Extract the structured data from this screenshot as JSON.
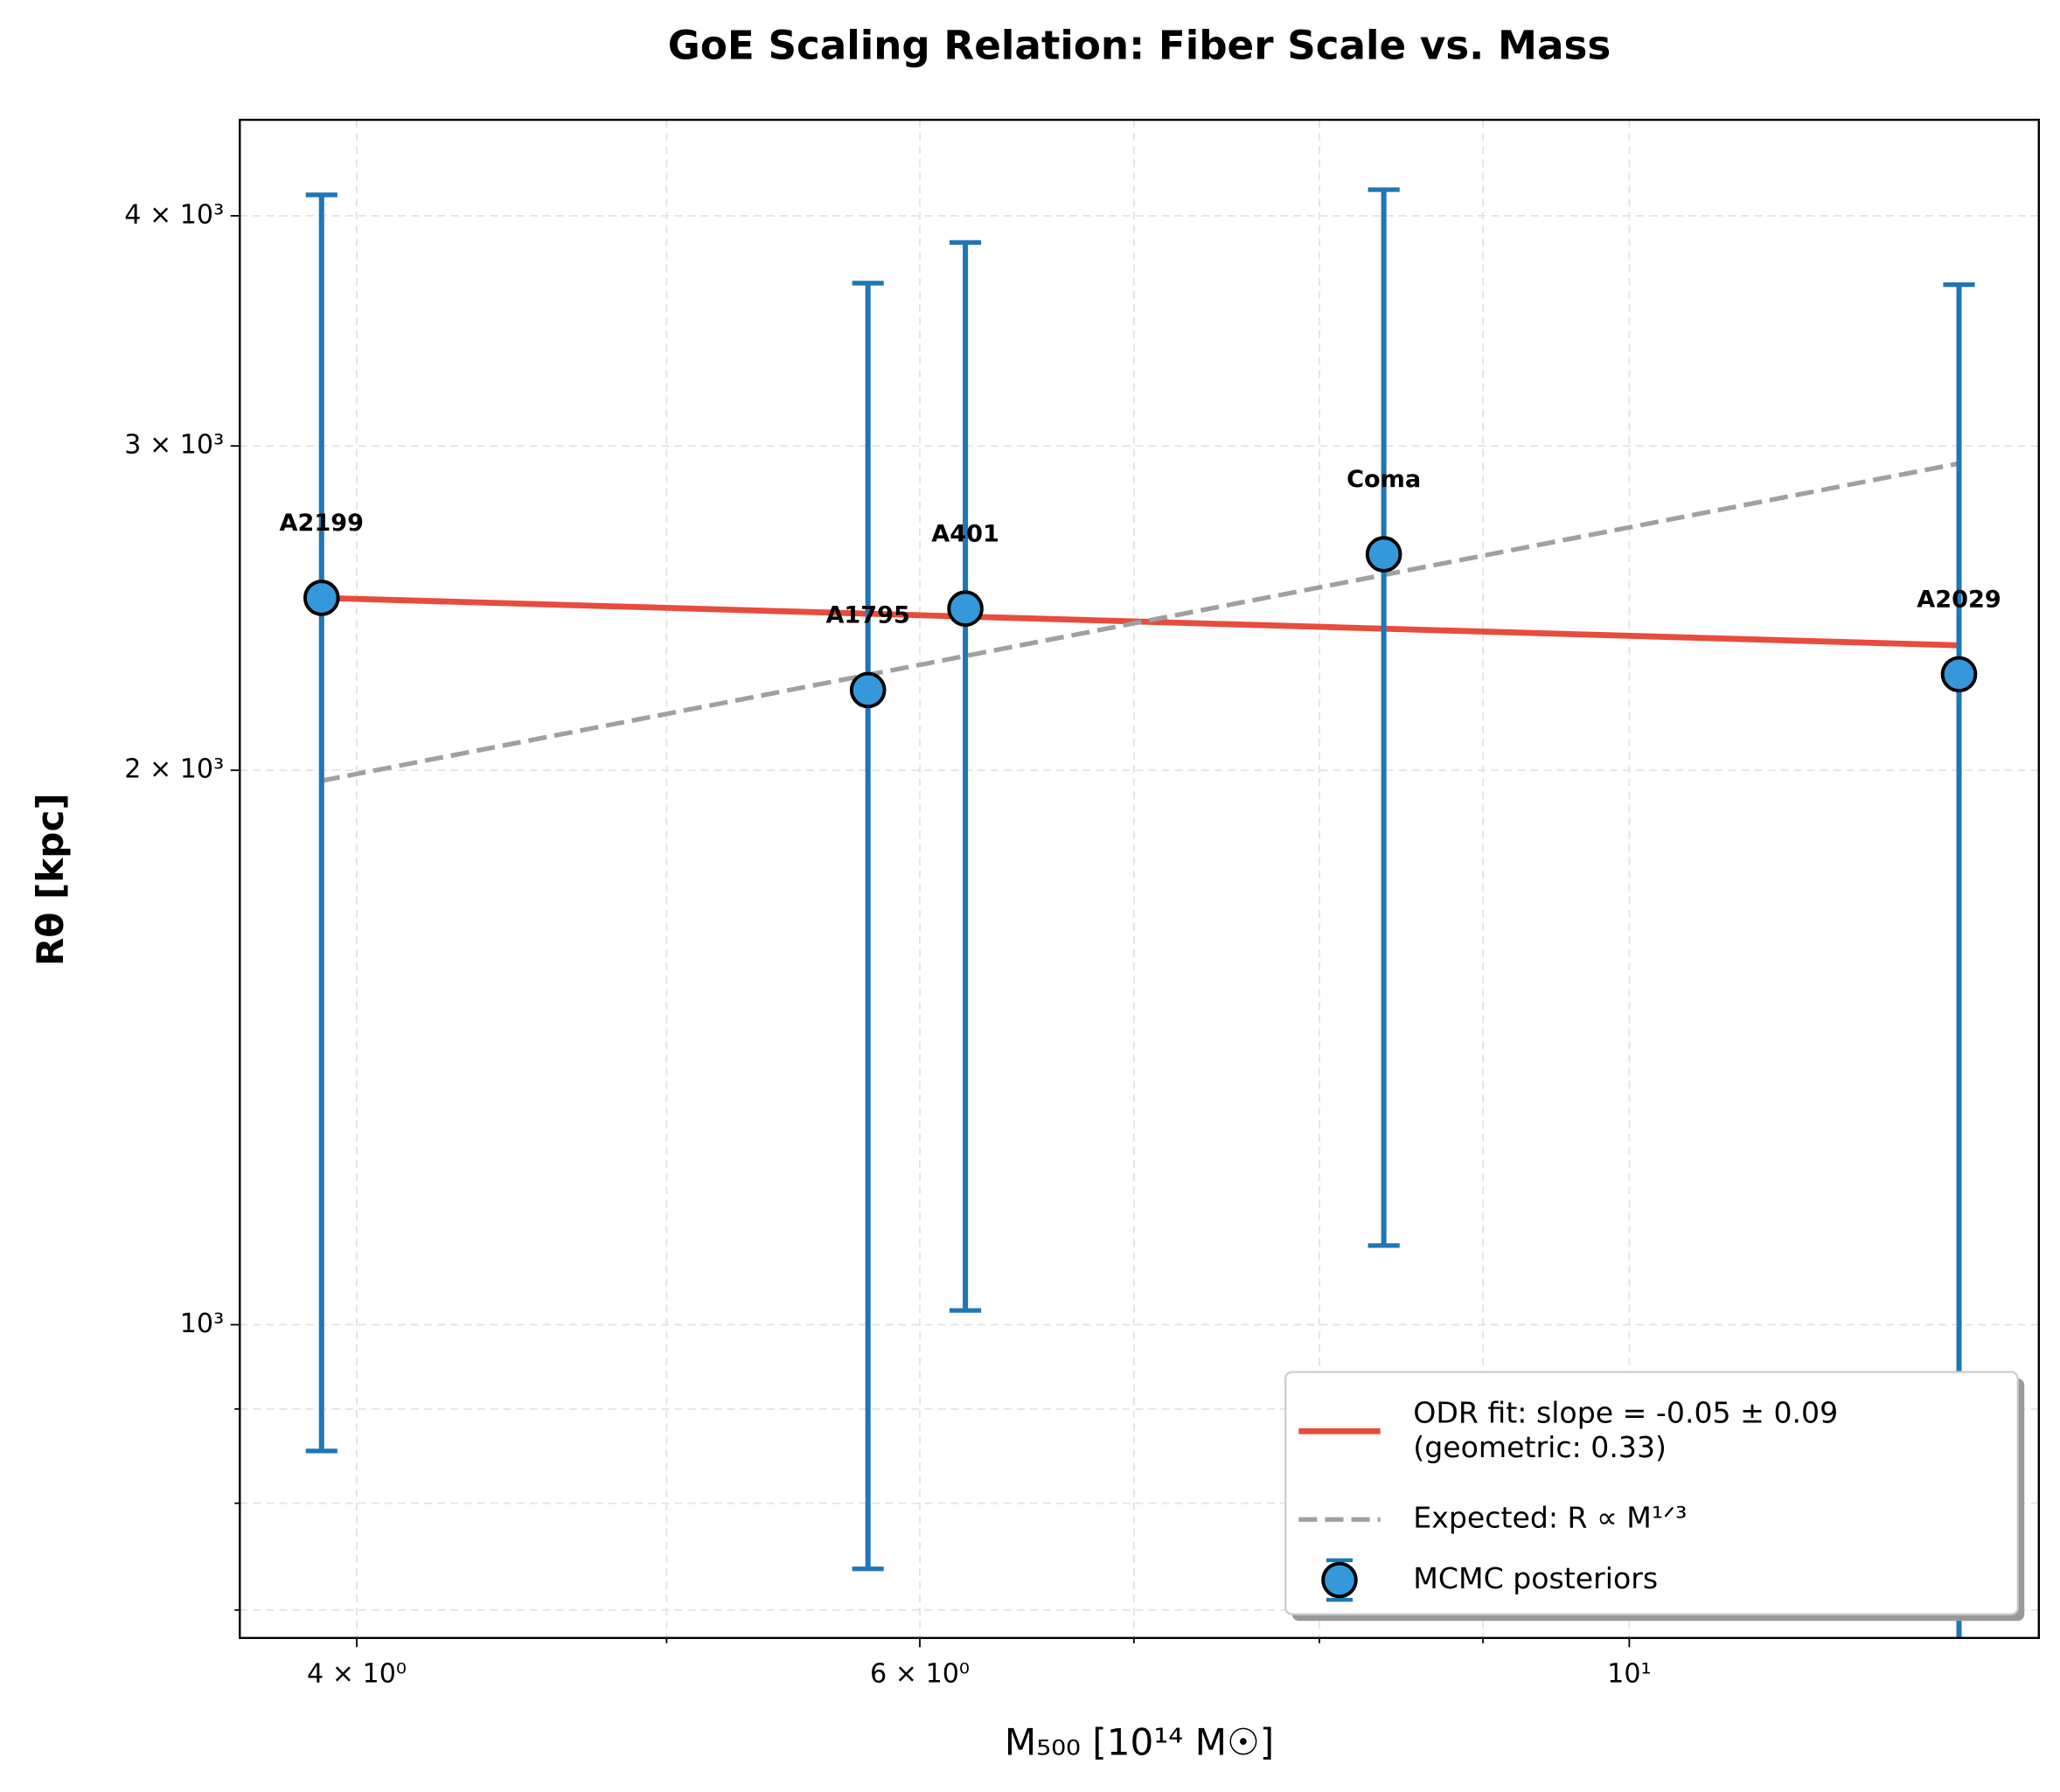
{
  "chart_data": {
    "type": "scatter",
    "title": "GoE Scaling Relation: Fiber Scale vs. Mass",
    "xlabel": "M₅₀₀ [10¹⁴ M☉]",
    "ylabel": "Rθ [kpc]",
    "log_x": true,
    "log_y": true,
    "grid": true,
    "legend": "lower right",
    "xlim": [
      3.677,
      13.43
    ],
    "ylim": [
      676,
      4510
    ],
    "xticks": [
      {
        "value": 4,
        "label": "4 × 10⁰"
      },
      {
        "value": 6,
        "label": "6 × 10⁰"
      },
      {
        "value": 10,
        "label": "10¹"
      }
    ],
    "yticks": [
      {
        "value": 1000,
        "label": "10³"
      },
      {
        "value": 2000,
        "label": "2 × 10³"
      },
      {
        "value": 3000,
        "label": "3 × 10³"
      },
      {
        "value": 4000,
        "label": "4 × 10³"
      }
    ],
    "xminor": [
      5,
      7,
      8,
      9
    ],
    "yminor": [
      700,
      800,
      900
    ],
    "series": [
      {
        "name": "ODR fit: slope = -0.05 ± 0.09\n(geometric: 0.33)",
        "type": "line",
        "color": "#e74c3c",
        "x": [
          3.9,
          12.68
        ],
        "values": [
          2481,
          2338
        ]
      },
      {
        "name": "Expected: R ∝ M¹ᐟ³",
        "type": "line",
        "dashed": true,
        "color": "#a0a0a0",
        "x": [
          3.9,
          12.68
        ],
        "values": [
          1974,
          2935
        ]
      },
      {
        "name": "MCMC posteriors",
        "type": "errorbar",
        "color": "#3498db",
        "error_color": "#1f77b4",
        "x": [
          3.9,
          5.78,
          6.2,
          8.38,
          12.68
        ],
        "values": [
          2481,
          2211,
          2448,
          2620,
          2255
        ],
        "lower": [
          854,
          737,
          1018,
          1104,
          640
        ],
        "upper": [
          4106,
          3677,
          3869,
          4133,
          3670
        ],
        "labels": [
          "A2199",
          "A1795",
          "A401",
          "Coma",
          "A2029"
        ]
      }
    ]
  }
}
